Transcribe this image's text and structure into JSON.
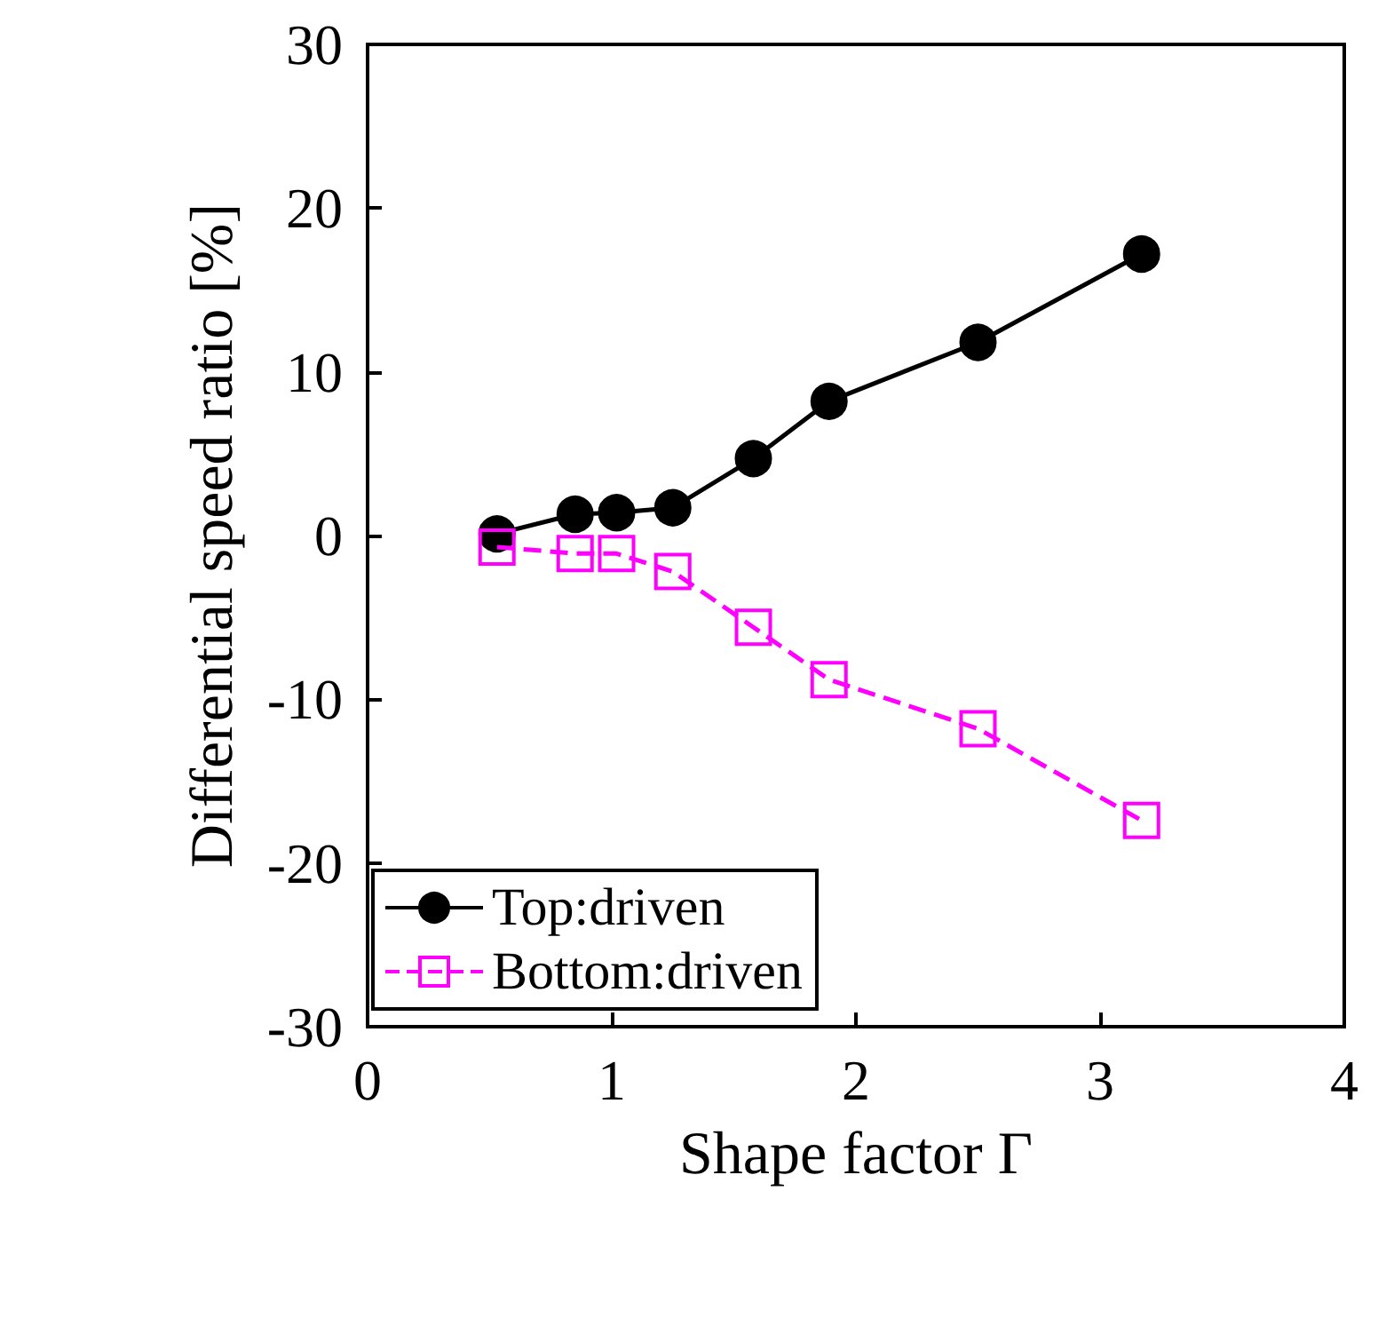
{
  "chart_data": {
    "type": "line",
    "xlabel": "Shape factor Γ",
    "ylabel": "Differential speed ratio [%]",
    "x": [
      0.53,
      0.85,
      1.02,
      1.25,
      1.58,
      1.89,
      2.5,
      3.17
    ],
    "series": [
      {
        "name": "Top:driven",
        "color": "#000000",
        "marker": "circle",
        "line_style": "solid",
        "values": [
          0.1,
          1.3,
          1.4,
          1.7,
          4.7,
          8.2,
          11.8,
          17.2
        ]
      },
      {
        "name": "Bottom:driven",
        "color": "#ff00ff",
        "marker": "square",
        "line_style": "dashed",
        "values": [
          -0.7,
          -1.1,
          -1.1,
          -2.2,
          -5.6,
          -8.8,
          -11.8,
          -17.4
        ]
      }
    ],
    "xlim": [
      0,
      4
    ],
    "xticks": [
      0,
      1,
      2,
      3,
      4
    ],
    "ylim": [
      -30,
      30
    ],
    "yticks": [
      -30,
      -20,
      -10,
      0,
      10,
      20,
      30
    ],
    "grid": false,
    "legend": "bottom left"
  }
}
